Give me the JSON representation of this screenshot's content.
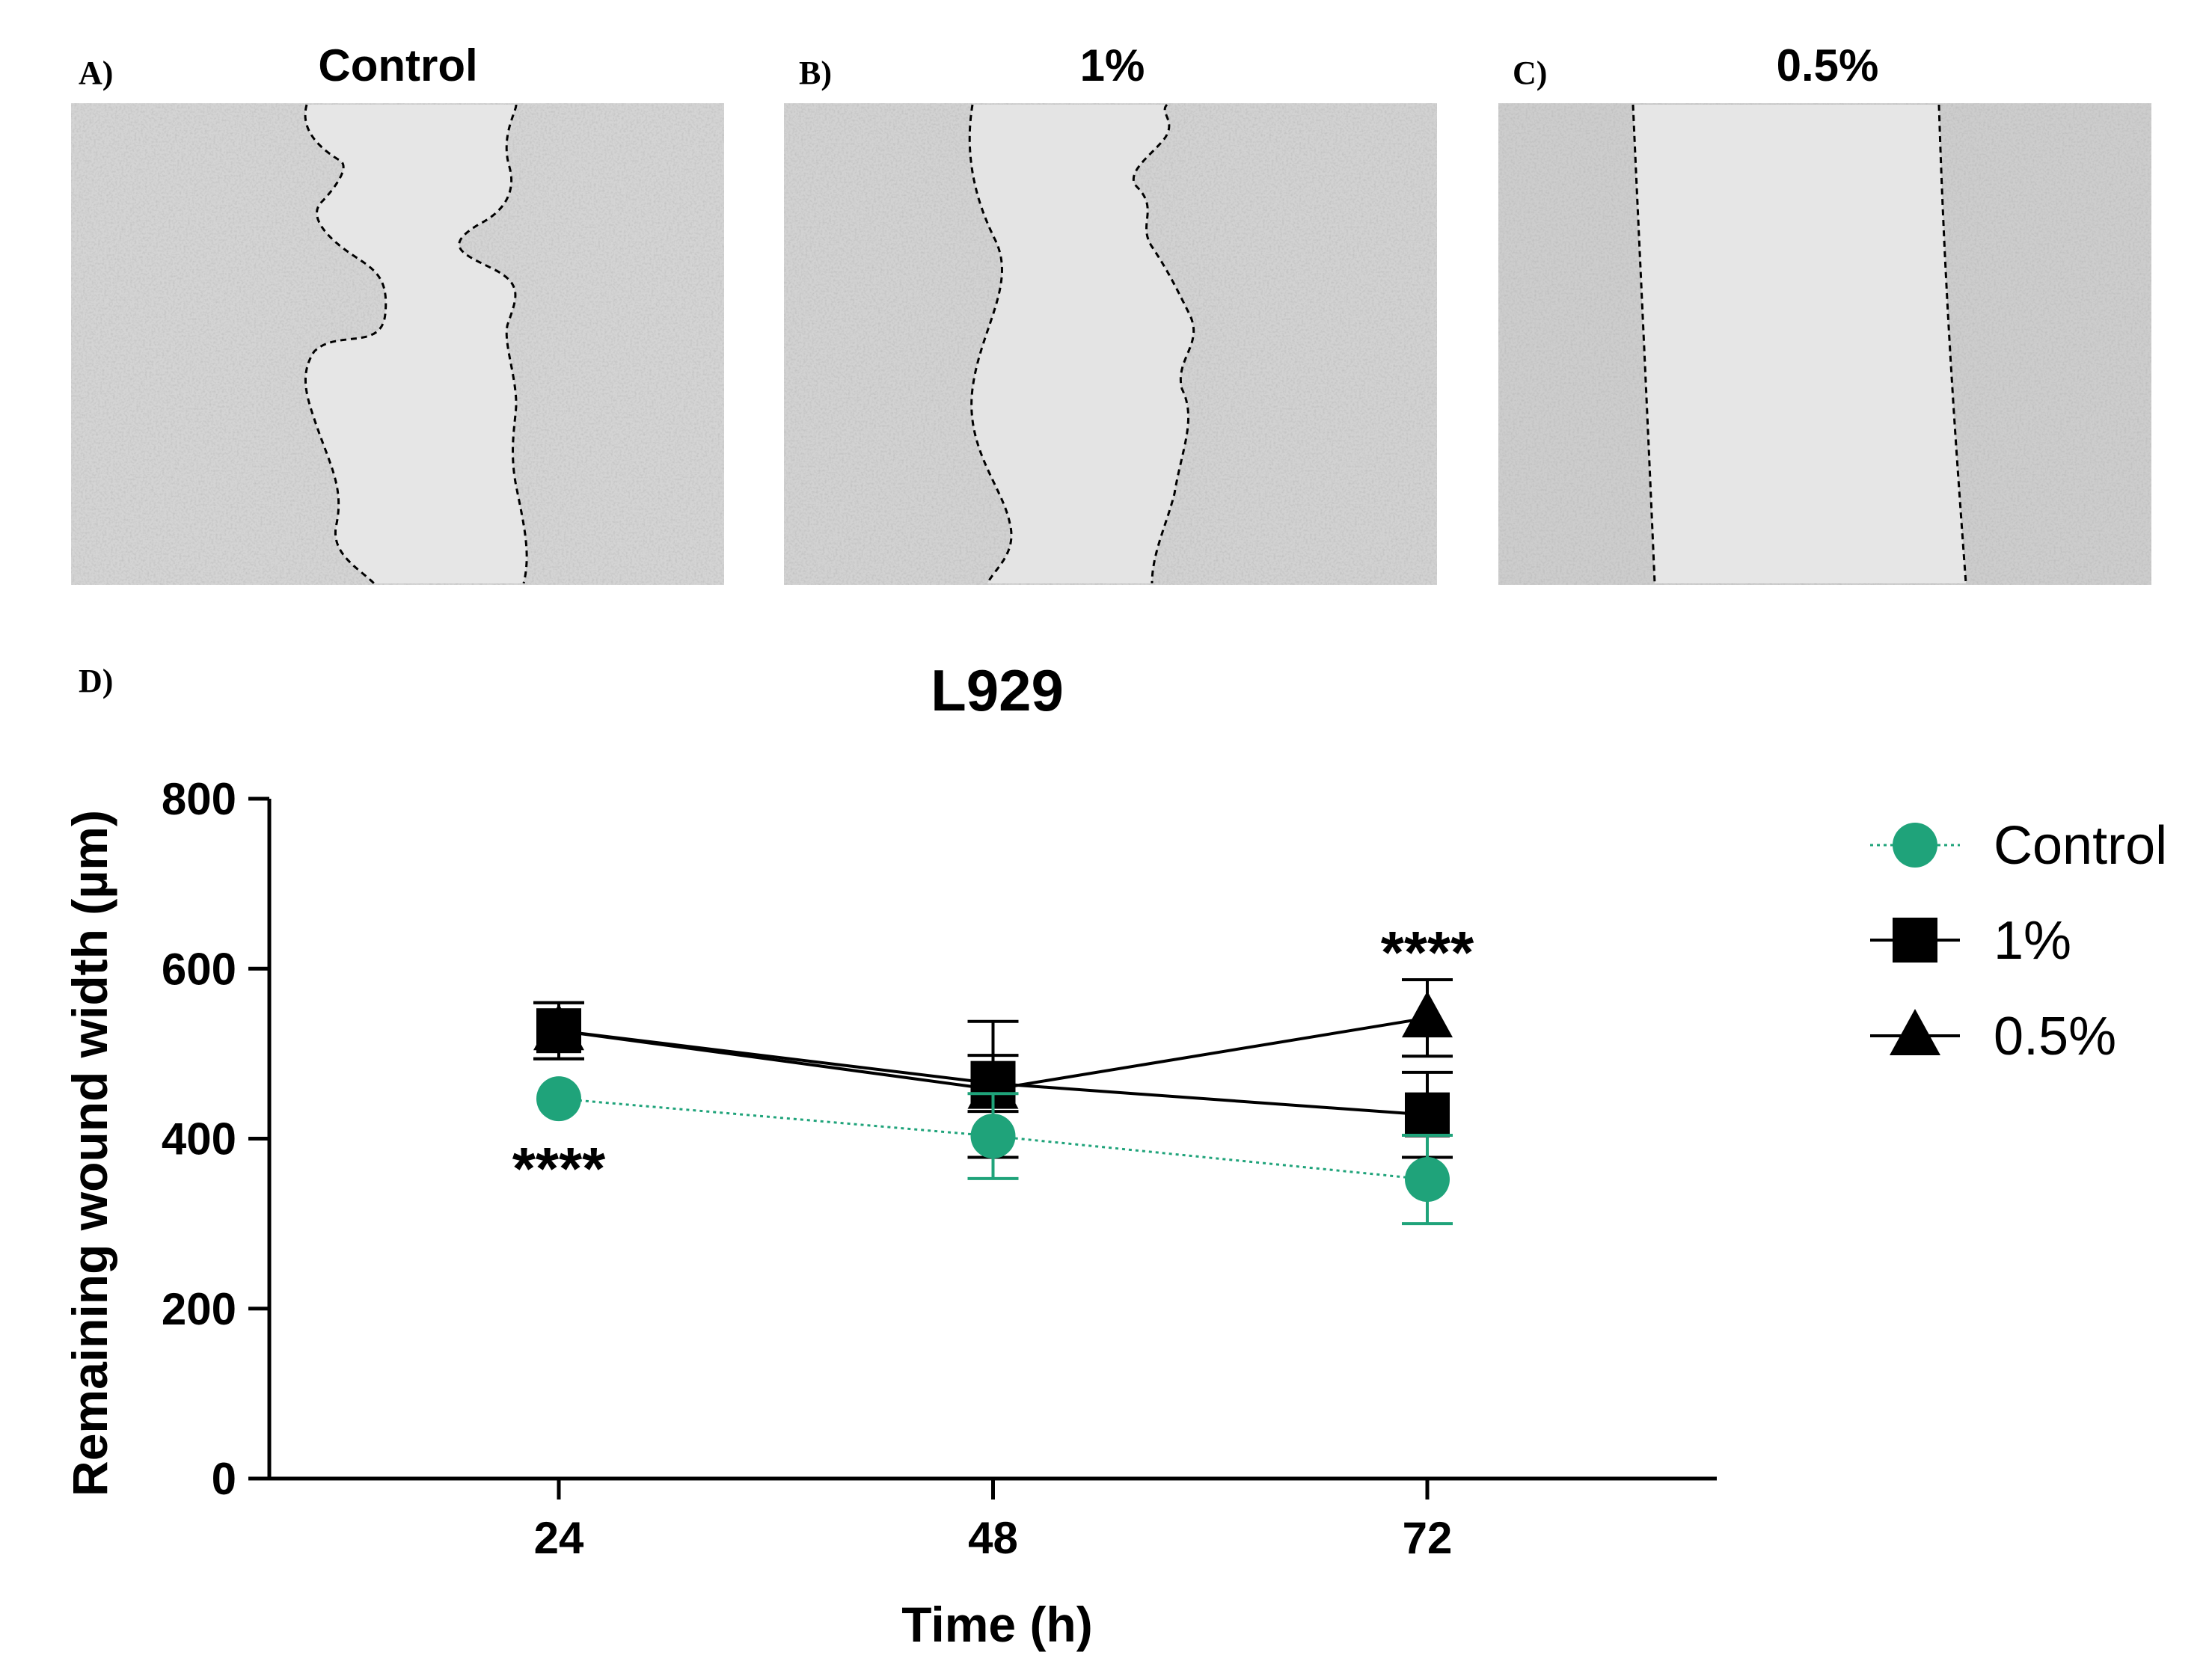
{
  "panels": [
    {
      "letter": "A)",
      "title": "Control"
    },
    {
      "letter": "B)",
      "title": "1%"
    },
    {
      "letter": "C)",
      "title": "0.5%"
    }
  ],
  "chart_panel_letter": "D)",
  "colors": {
    "control": "#1fa37a",
    "one_percent": "#000000",
    "half_percent": "#000000",
    "image_bg": "#d6d6d6",
    "image_wound": "#e4e4e4"
  },
  "chart_data": {
    "type": "line",
    "title": "L929",
    "xlabel": "Time (h)",
    "ylabel": "Remaining wound width (µm)",
    "x": [
      24,
      48,
      72
    ],
    "x_tick_labels": [
      "24",
      "48",
      "72"
    ],
    "ylim": [
      0,
      800
    ],
    "y_ticks": [
      0,
      200,
      400,
      600,
      800
    ],
    "y_tick_labels": [
      "0",
      "200",
      "400",
      "600",
      "800"
    ],
    "grid": false,
    "legend_position": "right",
    "series": [
      {
        "name": "Control",
        "marker": "circle",
        "line": "dotted",
        "values": [
          447,
          403,
          352
        ],
        "errors": [
          0,
          50,
          52
        ]
      },
      {
        "name": "1%",
        "marker": "square",
        "line": "solid",
        "values": [
          527,
          465,
          428
        ],
        "errors": [
          33,
          33,
          50
        ]
      },
      {
        "name": "0.5%",
        "marker": "triangle",
        "line": "solid",
        "values": [
          527,
          458,
          542
        ],
        "errors": [
          33,
          80,
          45
        ]
      }
    ],
    "annotations": [
      {
        "text": "****",
        "x": 24,
        "y": 376
      },
      {
        "text": "****",
        "x": 72,
        "y": 630
      }
    ]
  }
}
